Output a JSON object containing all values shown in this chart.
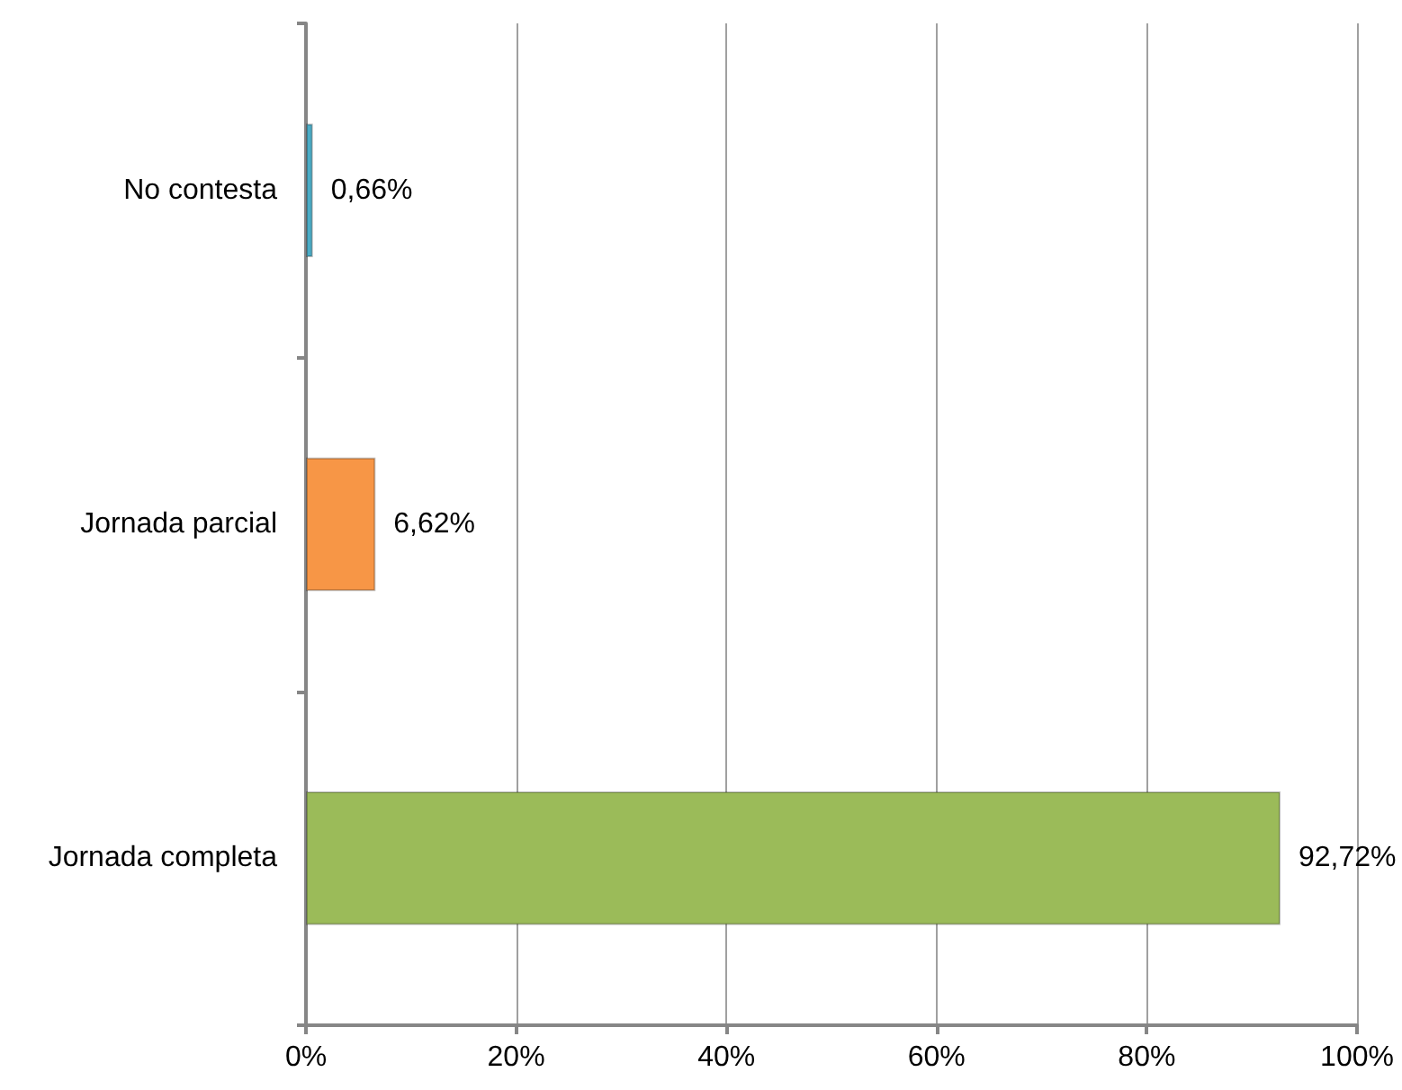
{
  "chart_data": {
    "type": "bar",
    "orientation": "horizontal",
    "categories": [
      "No contesta",
      "Jornada parcial",
      "Jornada completa"
    ],
    "values": [
      0.66,
      6.62,
      92.72
    ],
    "colors": [
      "#4bacc6",
      "#f79646",
      "#9bbb59"
    ],
    "value_labels": [
      "0,66%",
      "6,62%",
      "92,72%"
    ],
    "xlim": [
      0,
      100
    ],
    "xticks": [
      {
        "value": 0,
        "label": "0%"
      },
      {
        "value": 20,
        "label": "20%"
      },
      {
        "value": 40,
        "label": "40%"
      },
      {
        "value": 60,
        "label": "60%"
      },
      {
        "value": 80,
        "label": "80%"
      },
      {
        "value": 100,
        "label": "100%"
      }
    ],
    "grid": "x"
  }
}
